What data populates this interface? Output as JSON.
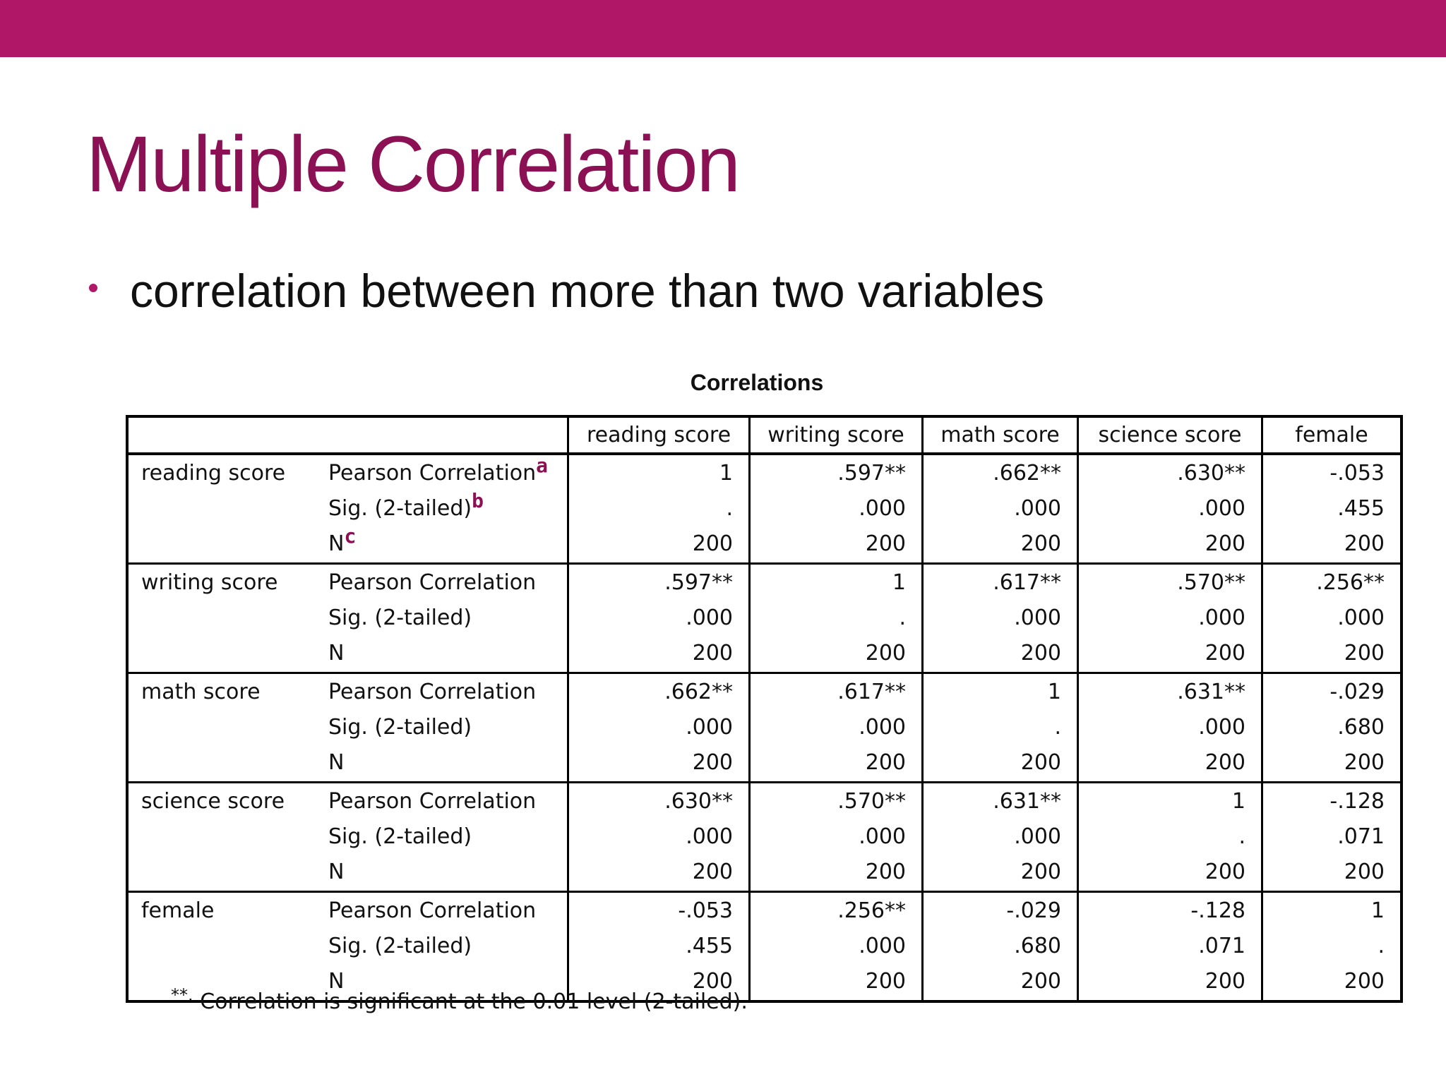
{
  "slide": {
    "title": "Multiple Correlation",
    "bullet": "correlation between more than two variables",
    "accent_color": "#b01766",
    "title_color": "#8c1154"
  },
  "table": {
    "caption": "Correlations",
    "columns": [
      "reading score",
      "writing score",
      "math score",
      "science score",
      "female"
    ],
    "stat_labels": [
      "Pearson Correlation",
      "Sig. (2-tailed)",
      "N"
    ],
    "stat_superscripts": [
      "a",
      "b",
      "c"
    ],
    "rows": [
      {
        "variable": "reading score",
        "pearson": [
          "1",
          ".597**",
          ".662**",
          ".630**",
          "-.053"
        ],
        "sig": [
          ".",
          ".000",
          ".000",
          ".000",
          ".455"
        ],
        "n": [
          "200",
          "200",
          "200",
          "200",
          "200"
        ]
      },
      {
        "variable": "writing score",
        "pearson": [
          ".597**",
          "1",
          ".617**",
          ".570**",
          ".256**"
        ],
        "sig": [
          ".000",
          ".",
          ".000",
          ".000",
          ".000"
        ],
        "n": [
          "200",
          "200",
          "200",
          "200",
          "200"
        ]
      },
      {
        "variable": "math score",
        "pearson": [
          ".662**",
          ".617**",
          "1",
          ".631**",
          "-.029"
        ],
        "sig": [
          ".000",
          ".000",
          ".",
          ".000",
          ".680"
        ],
        "n": [
          "200",
          "200",
          "200",
          "200",
          "200"
        ]
      },
      {
        "variable": "science score",
        "pearson": [
          ".630**",
          ".570**",
          ".631**",
          "1",
          "-.128"
        ],
        "sig": [
          ".000",
          ".000",
          ".000",
          ".",
          ".071"
        ],
        "n": [
          "200",
          "200",
          "200",
          "200",
          "200"
        ]
      },
      {
        "variable": "female",
        "pearson": [
          "-.053",
          ".256**",
          "-.029",
          "-.128",
          "1"
        ],
        "sig": [
          ".455",
          ".000",
          ".680",
          ".071",
          "."
        ],
        "n": [
          "200",
          "200",
          "200",
          "200",
          "200"
        ]
      }
    ],
    "footnote_marker": "**.",
    "footnote_text": "Correlation is significant at the 0.01 level (2-tailed)."
  }
}
